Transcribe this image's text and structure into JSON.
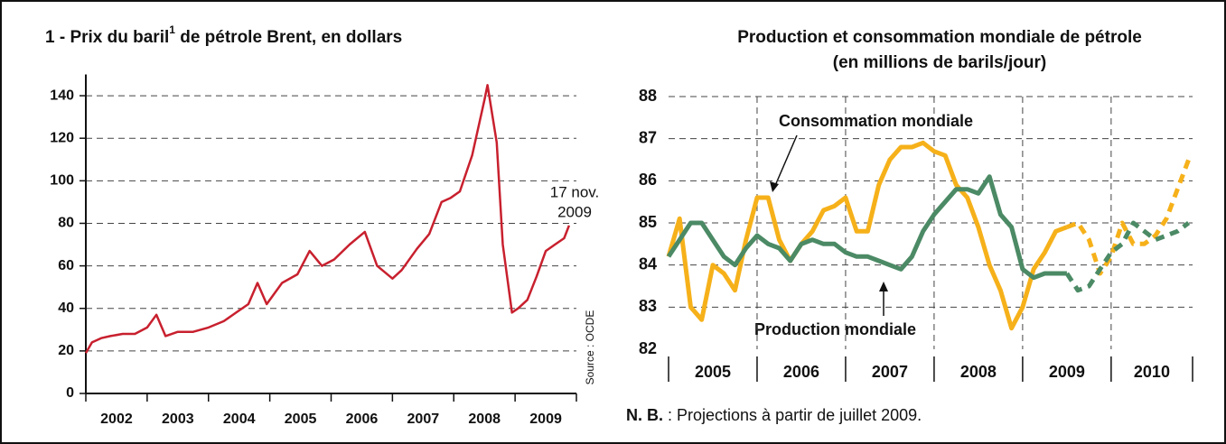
{
  "chart_data": [
    {
      "type": "line",
      "title": [
        "1 - Prix du baril",
        "1",
        " de pétrole Brent, en dollars"
      ],
      "categories": [
        "2002",
        "2003",
        "2004",
        "2005",
        "2006",
        "2007",
        "2008",
        "2009"
      ],
      "xlim": [
        2002,
        2010
      ],
      "xticks": [
        2002,
        2003,
        2004,
        2005,
        2006,
        2007,
        2008,
        2009,
        2010
      ],
      "ylim": [
        0,
        150
      ],
      "yticks": [
        0,
        20,
        40,
        60,
        80,
        100,
        120,
        140
      ],
      "grid": true,
      "x": [
        2002.0,
        2002.1,
        2002.25,
        2002.4,
        2002.6,
        2002.8,
        2003.0,
        2003.15,
        2003.3,
        2003.5,
        2003.75,
        2004.0,
        2004.25,
        2004.45,
        2004.65,
        2004.8,
        2004.95,
        2005.2,
        2005.45,
        2005.65,
        2005.85,
        2006.05,
        2006.3,
        2006.55,
        2006.75,
        2007.0,
        2007.15,
        2007.4,
        2007.6,
        2007.8,
        2007.95,
        2008.1,
        2008.3,
        2008.5,
        2008.55,
        2008.7,
        2008.8,
        2008.95,
        2009.05,
        2009.2,
        2009.35,
        2009.5,
        2009.65,
        2009.8,
        2009.88
      ],
      "series": [
        {
          "color": "#c8202e",
          "values": [
            19,
            24,
            26,
            27,
            28,
            28,
            31,
            37,
            27,
            29,
            29,
            31,
            34,
            38,
            42,
            52,
            42,
            52,
            56,
            67,
            60,
            63,
            70,
            76,
            60,
            54,
            58,
            68,
            75,
            90,
            92,
            95,
            112,
            138,
            145,
            118,
            70,
            38,
            40,
            44,
            55,
            67,
            70,
            73,
            79
          ]
        }
      ],
      "annotations": [
        "17 nov.",
        "2009",
        "Source : OCDE"
      ]
    },
    {
      "type": "line",
      "title": [
        "Production et consommation mondiale de pétrole",
        "(en millions de barils/jour)"
      ],
      "categories": [
        "2005",
        "2006",
        "2007",
        "2008",
        "2009",
        "2010"
      ],
      "xlim": [
        2005,
        2010.92
      ],
      "xticks": [
        2005,
        2006,
        2007,
        2008,
        2009,
        2010
      ],
      "ylim": [
        82,
        88
      ],
      "yticks": [
        82,
        83,
        84,
        85,
        86,
        87,
        88
      ],
      "grid": true,
      "projection_from": 2009.5,
      "x": [
        2005,
        2005.125,
        2005.25,
        2005.375,
        2005.5,
        2005.625,
        2005.75,
        2005.875,
        2006,
        2006.125,
        2006.25,
        2006.375,
        2006.5,
        2006.625,
        2006.75,
        2006.875,
        2007,
        2007.125,
        2007.25,
        2007.375,
        2007.5,
        2007.625,
        2007.75,
        2007.875,
        2008,
        2008.125,
        2008.25,
        2008.375,
        2008.5,
        2008.625,
        2008.75,
        2008.875,
        2009,
        2009.125,
        2009.25,
        2009.375,
        2009.5,
        2009.625,
        2009.75,
        2009.875,
        2010,
        2010.125,
        2010.25,
        2010.375,
        2010.5,
        2010.625,
        2010.75,
        2010.875
      ],
      "series": [
        {
          "name": "Consommation mondiale",
          "color": "#f6b11a",
          "values": [
            84.2,
            85.1,
            83.0,
            82.7,
            84.0,
            83.8,
            83.4,
            84.6,
            85.6,
            85.6,
            84.6,
            84.1,
            84.5,
            84.8,
            85.3,
            85.4,
            85.6,
            84.8,
            84.8,
            85.9,
            86.5,
            86.8,
            86.8,
            86.9,
            86.7,
            86.6,
            85.9,
            85.6,
            84.9,
            84.0,
            83.4,
            82.5,
            83.0,
            83.9,
            84.3,
            84.8,
            84.9,
            85.0,
            84.6,
            83.8,
            84.2,
            85.0,
            84.5,
            84.5,
            84.7,
            85.1,
            85.8,
            86.5
          ]
        },
        {
          "name": "Production mondiale",
          "color": "#4b8a65",
          "values": [
            84.2,
            84.6,
            85.0,
            85.0,
            84.6,
            84.2,
            84.0,
            84.4,
            84.7,
            84.5,
            84.4,
            84.1,
            84.5,
            84.6,
            84.5,
            84.5,
            84.3,
            84.2,
            84.2,
            84.1,
            84.0,
            83.9,
            84.2,
            84.8,
            85.2,
            85.5,
            85.8,
            85.8,
            85.7,
            86.1,
            85.2,
            84.9,
            83.9,
            83.7,
            83.8,
            83.8,
            83.8,
            83.4,
            83.5,
            83.9,
            84.3,
            84.5,
            85.0,
            84.8,
            84.6,
            84.7,
            84.8,
            85.0
          ]
        }
      ],
      "note": [
        "N. B.",
        " : Projections à partir de juillet 2009."
      ]
    }
  ]
}
